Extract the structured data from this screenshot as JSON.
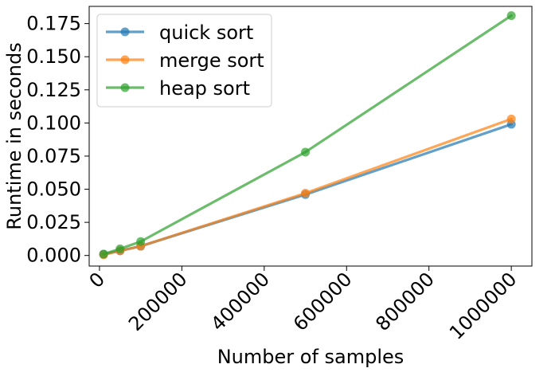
{
  "chart_data": {
    "type": "line",
    "title": "",
    "xlabel": "Number of samples",
    "ylabel": "Runtime in seconds",
    "xlim": [
      -25000,
      1050000
    ],
    "ylim": [
      -0.008,
      0.188
    ],
    "x_ticks": [
      0,
      200000,
      400000,
      600000,
      800000,
      1000000
    ],
    "x_tick_labels": [
      "0",
      "200000",
      "400000",
      "600000",
      "800000",
      "1000000"
    ],
    "y_ticks": [
      0.0,
      0.025,
      0.05,
      0.075,
      0.1,
      0.125,
      0.15,
      0.175
    ],
    "y_tick_labels": [
      "0.000",
      "0.025",
      "0.050",
      "0.075",
      "0.100",
      "0.125",
      "0.150",
      "0.175"
    ],
    "grid": false,
    "legend_position": "top-left",
    "series": [
      {
        "name": "quick sort",
        "color": "#1f77b4",
        "x": [
          10000,
          50000,
          100000,
          500000,
          1000000
        ],
        "y": [
          0.001,
          0.0035,
          0.007,
          0.046,
          0.099
        ]
      },
      {
        "name": "merge sort",
        "color": "#ff7f0e",
        "x": [
          10000,
          50000,
          100000,
          500000,
          1000000
        ],
        "y": [
          0.0005,
          0.0035,
          0.007,
          0.047,
          0.103
        ]
      },
      {
        "name": "heap sort",
        "color": "#2ca02c",
        "x": [
          10000,
          50000,
          100000,
          500000,
          1000000
        ],
        "y": [
          0.001,
          0.005,
          0.0105,
          0.078,
          0.181
        ]
      }
    ]
  }
}
